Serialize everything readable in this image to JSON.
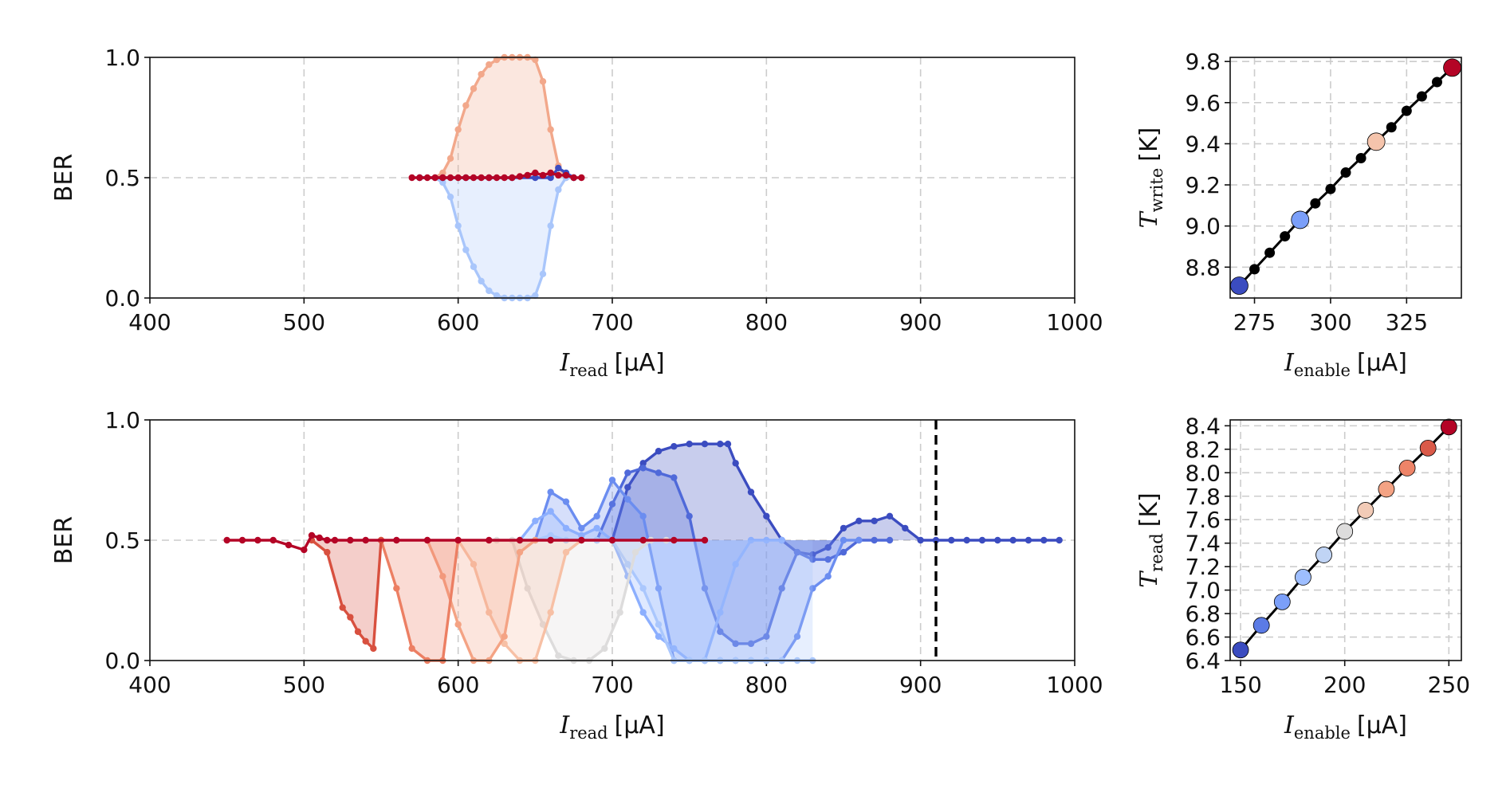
{
  "chart_data": [
    {
      "id": "write",
      "type": "line",
      "ylabel": "BER",
      "xlabel": {
        "main": "I",
        "sub": "read",
        "unit": "[µA]"
      },
      "xlim": [
        400,
        1000
      ],
      "ylim": [
        0,
        1
      ],
      "xticks": [
        "400",
        "500",
        "600",
        "700",
        "800",
        "900",
        "1000"
      ],
      "yticks": [
        "0.0",
        "0.5",
        "1.0"
      ],
      "grid": true,
      "series": [
        {
          "color": "#f2a88b",
          "fill": true,
          "x": [
            575,
            585,
            590,
            595,
            600,
            605,
            610,
            615,
            620,
            625,
            630,
            635,
            640,
            645,
            650,
            655,
            660,
            665,
            670,
            675
          ],
          "y": [
            0.5,
            0.5,
            0.52,
            0.58,
            0.7,
            0.8,
            0.87,
            0.93,
            0.97,
            0.99,
            1.0,
            1.0,
            1.0,
            1.0,
            0.99,
            0.9,
            0.7,
            0.55,
            0.5,
            0.5
          ]
        },
        {
          "color": "#a9c6fb",
          "fill": true,
          "x": [
            575,
            585,
            590,
            595,
            600,
            605,
            610,
            615,
            620,
            625,
            630,
            635,
            640,
            645,
            650,
            655,
            660,
            665,
            670,
            675
          ],
          "y": [
            0.5,
            0.5,
            0.48,
            0.42,
            0.3,
            0.2,
            0.13,
            0.07,
            0.03,
            0.01,
            0.0,
            0.0,
            0.0,
            0.0,
            0.01,
            0.1,
            0.3,
            0.45,
            0.5,
            0.5
          ]
        },
        {
          "color": "#3b4cc0",
          "fill": false,
          "x": [
            575,
            590,
            605,
            620,
            635,
            650,
            660,
            665,
            670,
            675
          ],
          "y": [
            0.5,
            0.5,
            0.5,
            0.5,
            0.5,
            0.5,
            0.5,
            0.54,
            0.52,
            0.5
          ]
        },
        {
          "color": "#b40426",
          "fill": false,
          "x": [
            570,
            575,
            580,
            585,
            590,
            595,
            600,
            605,
            610,
            615,
            620,
            625,
            630,
            635,
            640,
            645,
            650,
            655,
            660,
            665,
            670,
            675,
            680
          ],
          "y": [
            0.5,
            0.5,
            0.5,
            0.5,
            0.5,
            0.5,
            0.5,
            0.5,
            0.5,
            0.5,
            0.5,
            0.5,
            0.5,
            0.5,
            0.505,
            0.51,
            0.52,
            0.51,
            0.52,
            0.51,
            0.51,
            0.5,
            0.5
          ]
        }
      ],
      "hlines": [],
      "vlines": []
    },
    {
      "id": "read",
      "type": "line",
      "ylabel": "BER",
      "xlabel": {
        "main": "I",
        "sub": "read",
        "unit": "[µA]"
      },
      "xlim": [
        400,
        1000
      ],
      "ylim": [
        0,
        1
      ],
      "xticks": [
        "400",
        "500",
        "600",
        "700",
        "800",
        "900",
        "1000"
      ],
      "yticks": [
        "0.0",
        "0.5",
        "1.0"
      ],
      "grid": true,
      "vline_dashed": 910,
      "series": [
        {
          "color": "#3b4cc0",
          "fill": true,
          "x": [
            700,
            710,
            720,
            730,
            740,
            750,
            760,
            770,
            775,
            780,
            790,
            800,
            810,
            820,
            830,
            840,
            850,
            860,
            870,
            880,
            890,
            900,
            910,
            920,
            930,
            940,
            950,
            960,
            970,
            980,
            990
          ],
          "y": [
            0.5,
            0.72,
            0.82,
            0.87,
            0.89,
            0.9,
            0.9,
            0.9,
            0.9,
            0.82,
            0.7,
            0.6,
            0.5,
            0.45,
            0.44,
            0.47,
            0.55,
            0.58,
            0.58,
            0.6,
            0.55,
            0.5,
            0.5,
            0.5,
            0.5,
            0.5,
            0.5,
            0.5,
            0.5,
            0.5,
            0.5
          ]
        },
        {
          "color": "#4f69d9",
          "fill": true,
          "x": [
            690,
            700,
            710,
            720,
            730,
            740,
            750,
            760,
            770,
            780,
            790,
            800,
            810,
            820,
            830,
            840,
            850,
            860,
            870,
            880
          ],
          "y": [
            0.5,
            0.65,
            0.78,
            0.8,
            0.78,
            0.76,
            0.6,
            0.3,
            0.12,
            0.07,
            0.07,
            0.1,
            0.3,
            0.45,
            0.42,
            0.42,
            0.45,
            0.5,
            0.5,
            0.5
          ]
        },
        {
          "color": "#6b8df0",
          "fill": true,
          "x": [
            650,
            660,
            670,
            680,
            690,
            700,
            710,
            720,
            730,
            740,
            750,
            760,
            770,
            780,
            790,
            800,
            810,
            820,
            830,
            840,
            850,
            860
          ],
          "y": [
            0.5,
            0.7,
            0.66,
            0.55,
            0.6,
            0.75,
            0.67,
            0.6,
            0.3,
            0.0,
            0.0,
            0.0,
            0.0,
            0.0,
            0.0,
            0.0,
            0.0,
            0.1,
            0.3,
            0.35,
            0.5,
            0.5
          ]
        },
        {
          "color": "#8caffe",
          "fill": true,
          "x": [
            640,
            650,
            660,
            670,
            680,
            690,
            700,
            710,
            720,
            730,
            740,
            750,
            760,
            770,
            780,
            790,
            800,
            810
          ],
          "y": [
            0.5,
            0.58,
            0.62,
            0.55,
            0.52,
            0.55,
            0.5,
            0.35,
            0.2,
            0.1,
            0.05,
            0.0,
            0.0,
            0.2,
            0.4,
            0.5,
            0.5,
            0.5
          ]
        },
        {
          "color": "#aac7fd",
          "fill": true,
          "x": [
            640,
            650,
            660,
            670,
            680,
            690,
            700,
            710,
            720,
            730,
            740,
            750,
            760,
            770,
            780,
            790,
            800,
            810,
            820,
            830
          ],
          "y": [
            0.5,
            0.5,
            0.52,
            0.5,
            0.5,
            0.5,
            0.5,
            0.4,
            0.3,
            0.15,
            0.0,
            0.0,
            0.0,
            0.0,
            0.0,
            0.0,
            0.0,
            0.0,
            0.0,
            0.0
          ]
        },
        {
          "color": "#dddcdc",
          "fill": true,
          "x": [
            625,
            635,
            645,
            655,
            665,
            675,
            685,
            695,
            705,
            715,
            725,
            735
          ],
          "y": [
            0.5,
            0.5,
            0.3,
            0.15,
            0.02,
            0.0,
            0.0,
            0.05,
            0.2,
            0.45,
            0.5,
            0.5
          ]
        },
        {
          "color": "#f7c0a5",
          "fill": true,
          "x": [
            600,
            610,
            620,
            630,
            640,
            650,
            660,
            670,
            680
          ],
          "y": [
            0.5,
            0.4,
            0.2,
            0.07,
            0.0,
            0.0,
            0.2,
            0.45,
            0.5
          ]
        },
        {
          "color": "#f4a384",
          "fill": true,
          "x": [
            580,
            590,
            600,
            610,
            620,
            630,
            640,
            650
          ],
          "y": [
            0.5,
            0.35,
            0.15,
            0.0,
            0.0,
            0.1,
            0.45,
            0.5
          ]
        },
        {
          "color": "#ec7f63",
          "fill": true,
          "x": [
            550,
            560,
            570,
            580,
            590,
            600
          ],
          "y": [
            0.5,
            0.3,
            0.05,
            0.0,
            0.0,
            0.5
          ]
        },
        {
          "color": "#d8503f",
          "fill": true,
          "x": [
            505,
            515,
            525,
            530,
            535,
            540,
            545,
            550
          ],
          "y": [
            0.5,
            0.45,
            0.22,
            0.18,
            0.12,
            0.08,
            0.05,
            0.5
          ]
        },
        {
          "color": "#b40426",
          "fill": false,
          "x": [
            450,
            460,
            470,
            480,
            490,
            500,
            505,
            510,
            515,
            520,
            530,
            540,
            560,
            580,
            600,
            620,
            640,
            660,
            680,
            700,
            720,
            740,
            760
          ],
          "y": [
            0.5,
            0.5,
            0.5,
            0.5,
            0.48,
            0.46,
            0.52,
            0.51,
            0.5,
            0.5,
            0.5,
            0.5,
            0.5,
            0.5,
            0.5,
            0.5,
            0.5,
            0.5,
            0.5,
            0.5,
            0.5,
            0.5,
            0.5
          ]
        }
      ]
    },
    {
      "id": "twrite",
      "type": "scatter",
      "ylabel": {
        "main": "T",
        "sub": "write",
        "unit": "[K]"
      },
      "xlabel": {
        "main": "I",
        "sub": "enable",
        "unit": "[µA]"
      },
      "xlim": [
        267,
        343
      ],
      "ylim": [
        8.65,
        9.82
      ],
      "xticks": [
        "275",
        "300",
        "325"
      ],
      "yticks": [
        "8.8",
        "9.0",
        "9.2",
        "9.4",
        "9.6",
        "9.8"
      ],
      "grid": true,
      "points": {
        "x": [
          270,
          275,
          280,
          285,
          290,
          295,
          300,
          305,
          310,
          315,
          320,
          325,
          330,
          335,
          340
        ],
        "y": [
          8.71,
          8.79,
          8.87,
          8.95,
          9.03,
          9.11,
          9.18,
          9.26,
          9.33,
          9.41,
          9.48,
          9.56,
          9.63,
          9.7,
          9.77
        ],
        "highlight": [
          {
            "index": 0,
            "color": "#3b4cc0"
          },
          {
            "index": 4,
            "color": "#7b9ff9"
          },
          {
            "index": 9,
            "color": "#f5c4ac"
          },
          {
            "index": 14,
            "color": "#b40426"
          }
        ]
      }
    },
    {
      "id": "tread",
      "type": "scatter",
      "ylabel": {
        "main": "T",
        "sub": "read",
        "unit": "[K]"
      },
      "xlabel": {
        "main": "I",
        "sub": "enable",
        "unit": "[µA]"
      },
      "xlim": [
        145,
        256
      ],
      "ylim": [
        6.4,
        8.45
      ],
      "xticks": [
        "150",
        "200",
        "250"
      ],
      "yticks": [
        "6.4",
        "6.6",
        "6.8",
        "7.0",
        "7.2",
        "7.4",
        "7.6",
        "7.8",
        "8.0",
        "8.2",
        "8.4"
      ],
      "grid": true,
      "points": {
        "x": [
          150,
          160,
          170,
          180,
          190,
          200,
          210,
          220,
          230,
          240,
          250
        ],
        "y": [
          6.49,
          6.7,
          6.9,
          7.11,
          7.3,
          7.5,
          7.68,
          7.86,
          8.04,
          8.21,
          8.39
        ],
        "colors": [
          "#3b4cc0",
          "#5b7be5",
          "#7b9ff9",
          "#9ebeff",
          "#c0d4f5",
          "#dddcdc",
          "#f2cbb7",
          "#f4a384",
          "#ee8468",
          "#da5a49",
          "#b40426"
        ]
      }
    }
  ]
}
